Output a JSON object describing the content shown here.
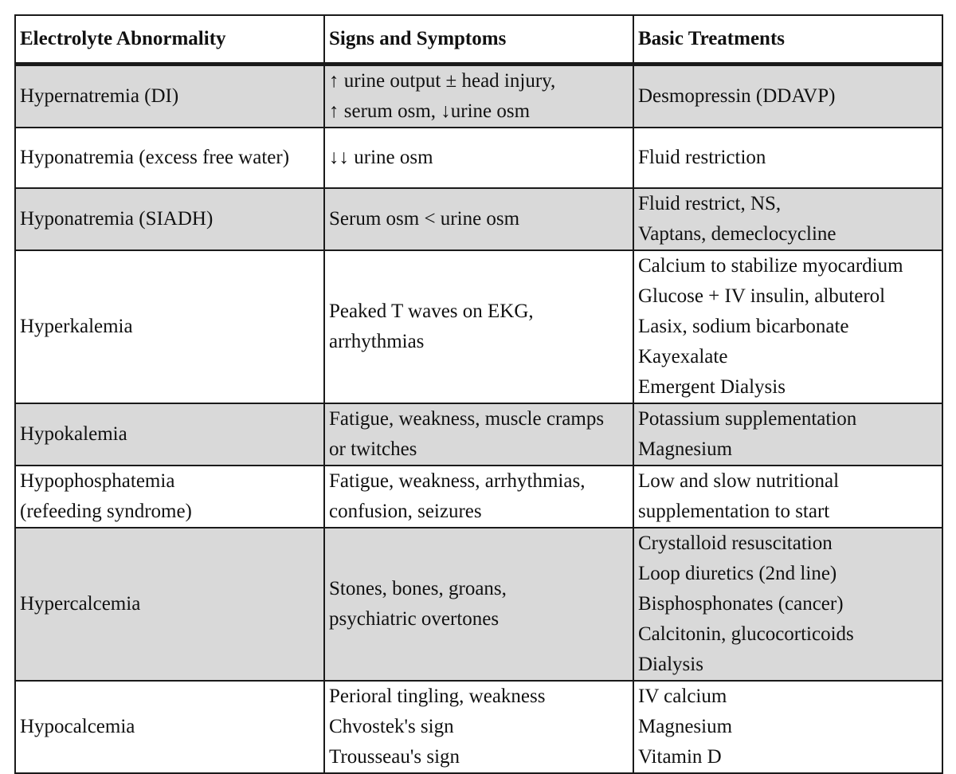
{
  "table": {
    "headers": [
      "Electrolyte Abnormality",
      "Signs and Symptoms",
      "Basic Treatments"
    ],
    "rows": [
      {
        "abnormality": [
          "Hypernatremia (DI)"
        ],
        "signs": [
          "↑ urine output ± head injury,",
          "↑ serum osm, ↓urine osm"
        ],
        "treatments": [
          "Desmopressin (DDAVP)"
        ]
      },
      {
        "abnormality": [
          "Hyponatremia (excess free water)"
        ],
        "signs": [
          "↓↓ urine osm"
        ],
        "treatments": [
          "Fluid restriction"
        ]
      },
      {
        "abnormality": [
          "Hyponatremia (SIADH)"
        ],
        "signs": [
          "Serum osm < urine osm"
        ],
        "treatments": [
          "Fluid restrict, NS,",
          "Vaptans, demeclocycline"
        ]
      },
      {
        "abnormality": [
          "Hyperkalemia"
        ],
        "signs": [
          "Peaked T waves on EKG,",
          "arrhythmias"
        ],
        "treatments": [
          "Calcium to stabilize myocardium",
          "Glucose + IV insulin, albuterol",
          "Lasix, sodium bicarbonate",
          "Kayexalate",
          "Emergent Dialysis"
        ]
      },
      {
        "abnormality": [
          "Hypokalemia"
        ],
        "signs": [
          "Fatigue, weakness, muscle cramps",
          "or twitches"
        ],
        "treatments": [
          "Potassium supplementation",
          "Magnesium"
        ]
      },
      {
        "abnormality": [
          "Hypophosphatemia",
          "(refeeding syndrome)"
        ],
        "signs": [
          "Fatigue, weakness, arrhythmias,",
          "confusion, seizures"
        ],
        "treatments": [
          "Low and slow nutritional",
          "supplementation to start"
        ]
      },
      {
        "abnormality": [
          "Hypercalcemia"
        ],
        "signs": [
          "Stones, bones, groans,",
          "psychiatric overtones"
        ],
        "treatments": [
          "Crystalloid resuscitation",
          "Loop diuretics (2nd line)",
          "Bisphosphonates (cancer)",
          "Calcitonin, glucocorticoids",
          "Dialysis"
        ]
      },
      {
        "abnormality": [
          "Hypocalcemia"
        ],
        "signs": [
          "Perioral tingling, weakness",
          "Chvostek's sign",
          "Trousseau's sign"
        ],
        "treatments": [
          "IV calcium",
          "Magnesium",
          "Vitamin D"
        ]
      }
    ]
  },
  "colors": {
    "shaded_row": "#d9d9d9",
    "plain_row": "#ffffff",
    "border": "#1a1a1a",
    "text": "#111111"
  }
}
